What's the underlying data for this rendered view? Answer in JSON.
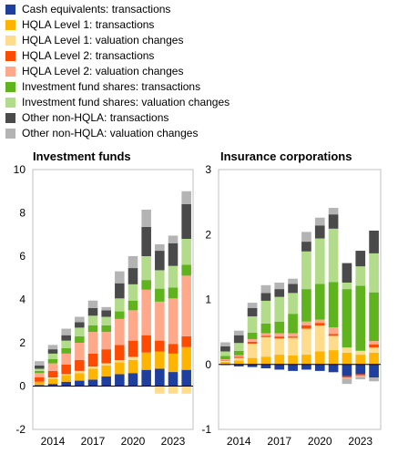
{
  "legend": [
    {
      "key": "cash",
      "label": "Cash equivalents: transactions",
      "color": "#1f3f9f"
    },
    {
      "key": "hqla1_tx",
      "label": "HQLA Level 1: transactions",
      "color": "#ffb400"
    },
    {
      "key": "hqla1_val",
      "label": "HQLA Level 1: valuation changes",
      "color": "#ffdc8c"
    },
    {
      "key": "hqla2_tx",
      "label": "HQLA Level 2: transactions",
      "color": "#ff4b00"
    },
    {
      "key": "hqla2_val",
      "label": "HQLA Level 2: valuation changes",
      "color": "#ffa98a"
    },
    {
      "key": "inv_tx",
      "label": "Investment fund shares: transactions",
      "color": "#5fb41e"
    },
    {
      "key": "inv_val",
      "label": "Investment fund shares: valuation changes",
      "color": "#b2db8a"
    },
    {
      "key": "other_tx",
      "label": "Other non-HQLA: transactions",
      "color": "#4a4a4a"
    },
    {
      "key": "other_val",
      "label": "Other non-HQLA: valuation changes",
      "color": "#b4b4b4"
    }
  ],
  "chart_data": [
    {
      "type": "bar",
      "stacked": true,
      "title": "Investment funds",
      "ylim": [
        -2,
        10
      ],
      "yticks": [
        -2,
        0,
        2,
        4,
        6,
        8,
        10
      ],
      "xtick_labels": [
        "2014",
        "2017",
        "2020",
        "2023"
      ],
      "categories": [
        "2013",
        "2014",
        "2015",
        "2016",
        "2017",
        "2018",
        "2019",
        "2020",
        "2021",
        "2022",
        "2023",
        "2024"
      ],
      "series": [
        {
          "key": "cash",
          "name": "Cash equivalents: transactions",
          "values": [
            0.05,
            0.1,
            0.2,
            0.25,
            0.3,
            0.45,
            0.55,
            0.6,
            0.75,
            0.8,
            0.65,
            0.75
          ]
        },
        {
          "key": "hqla1_tx",
          "name": "HQLA Level 1: transactions",
          "values": [
            0.15,
            0.25,
            0.3,
            0.35,
            0.5,
            0.5,
            0.55,
            0.6,
            0.8,
            0.8,
            0.85,
            1.05
          ]
        },
        {
          "key": "hqla1_val",
          "name": "HQLA Level 1: valuation changes",
          "values": [
            0.0,
            0.05,
            0.05,
            0.1,
            0.1,
            0.1,
            0.1,
            0.15,
            0.0,
            -0.35,
            -0.35,
            -0.35
          ]
        },
        {
          "key": "hqla2_tx",
          "name": "HQLA Level 2: transactions",
          "values": [
            0.2,
            0.3,
            0.45,
            0.5,
            0.6,
            0.65,
            0.7,
            0.75,
            0.8,
            0.5,
            0.45,
            0.5
          ]
        },
        {
          "key": "hqla2_val",
          "name": "HQLA Level 2: valuation changes",
          "values": [
            0.2,
            0.35,
            0.5,
            0.8,
            1.0,
            0.8,
            1.2,
            1.4,
            2.1,
            1.8,
            2.1,
            2.8
          ]
        },
        {
          "key": "inv_tx",
          "name": "Investment fund shares: transactions",
          "values": [
            0.1,
            0.2,
            0.25,
            0.3,
            0.3,
            0.3,
            0.35,
            0.45,
            0.45,
            0.6,
            0.5,
            0.5
          ]
        },
        {
          "key": "inv_val",
          "name": "Investment fund shares: valuation changes",
          "values": [
            0.1,
            0.25,
            0.35,
            0.4,
            0.45,
            0.4,
            0.6,
            0.75,
            1.1,
            0.85,
            1.0,
            1.2
          ]
        },
        {
          "key": "other_tx",
          "name": "Other non-HQLA: transactions",
          "values": [
            0.15,
            0.2,
            0.25,
            0.25,
            0.35,
            0.3,
            0.7,
            0.75,
            1.35,
            0.9,
            1.05,
            1.6
          ]
        },
        {
          "key": "other_val",
          "name": "Other non-HQLA: valuation changes",
          "values": [
            0.2,
            0.2,
            0.3,
            0.25,
            0.35,
            0.15,
            0.55,
            0.55,
            0.8,
            0.3,
            0.35,
            0.6
          ]
        }
      ]
    },
    {
      "type": "bar",
      "stacked": true,
      "title": "Insurance corporations",
      "ylim": [
        -1,
        3
      ],
      "yticks": [
        -1,
        0,
        1,
        2,
        3
      ],
      "xtick_labels": [
        "2014",
        "2017",
        "2020",
        "2023"
      ],
      "categories": [
        "2013",
        "2014",
        "2015",
        "2016",
        "2017",
        "2018",
        "2019",
        "2020",
        "2021",
        "2022",
        "2023",
        "2024"
      ],
      "series": [
        {
          "key": "cash",
          "name": "Cash equivalents: transactions",
          "values": [
            -0.01,
            -0.03,
            -0.04,
            -0.06,
            -0.08,
            -0.1,
            -0.08,
            -0.1,
            -0.12,
            -0.18,
            -0.15,
            -0.2
          ]
        },
        {
          "key": "hqla1_tx",
          "name": "HQLA Level 1: transactions",
          "values": [
            0.04,
            0.06,
            0.1,
            0.12,
            0.15,
            0.14,
            0.15,
            0.2,
            0.22,
            0.18,
            0.15,
            0.18
          ]
        },
        {
          "key": "hqla1_val",
          "name": "HQLA Level 1: valuation changes",
          "values": [
            0.02,
            0.04,
            0.22,
            0.3,
            0.25,
            0.27,
            0.4,
            0.4,
            0.22,
            0.08,
            0.06,
            0.08
          ]
        },
        {
          "key": "hqla2_tx",
          "name": "HQLA Level 2: transactions",
          "values": [
            0.01,
            0.02,
            0.03,
            0.02,
            0.03,
            0.02,
            0.05,
            0.04,
            0.03,
            -0.02,
            -0.02,
            0.05
          ]
        },
        {
          "key": "hqla2_val",
          "name": "HQLA Level 2: valuation changes",
          "values": [
            0.01,
            0.02,
            0.04,
            0.04,
            0.05,
            0.05,
            0.06,
            0.05,
            0.1,
            -0.02,
            -0.02,
            0.05
          ]
        },
        {
          "key": "inv_tx",
          "name": "Investment fund shares: transactions",
          "values": [
            0.05,
            0.07,
            0.1,
            0.15,
            0.18,
            0.3,
            0.5,
            0.55,
            0.7,
            0.9,
            1.0,
            0.75
          ]
        },
        {
          "key": "inv_val",
          "name": "Investment fund shares: valuation changes",
          "values": [
            0.07,
            0.12,
            0.25,
            0.35,
            0.38,
            0.32,
            0.58,
            0.7,
            0.82,
            0.1,
            0.3,
            0.6
          ]
        },
        {
          "key": "other_tx",
          "name": "Other non-HQLA: transactions",
          "values": [
            0.08,
            0.12,
            0.13,
            0.12,
            0.12,
            0.14,
            0.15,
            0.2,
            0.22,
            0.3,
            0.24,
            0.35
          ]
        },
        {
          "key": "other_val",
          "name": "Other non-HQLA: valuation changes",
          "values": [
            0.06,
            0.07,
            0.08,
            0.12,
            0.1,
            0.08,
            0.15,
            0.12,
            0.1,
            -0.08,
            -0.04,
            -0.06
          ]
        }
      ]
    }
  ]
}
